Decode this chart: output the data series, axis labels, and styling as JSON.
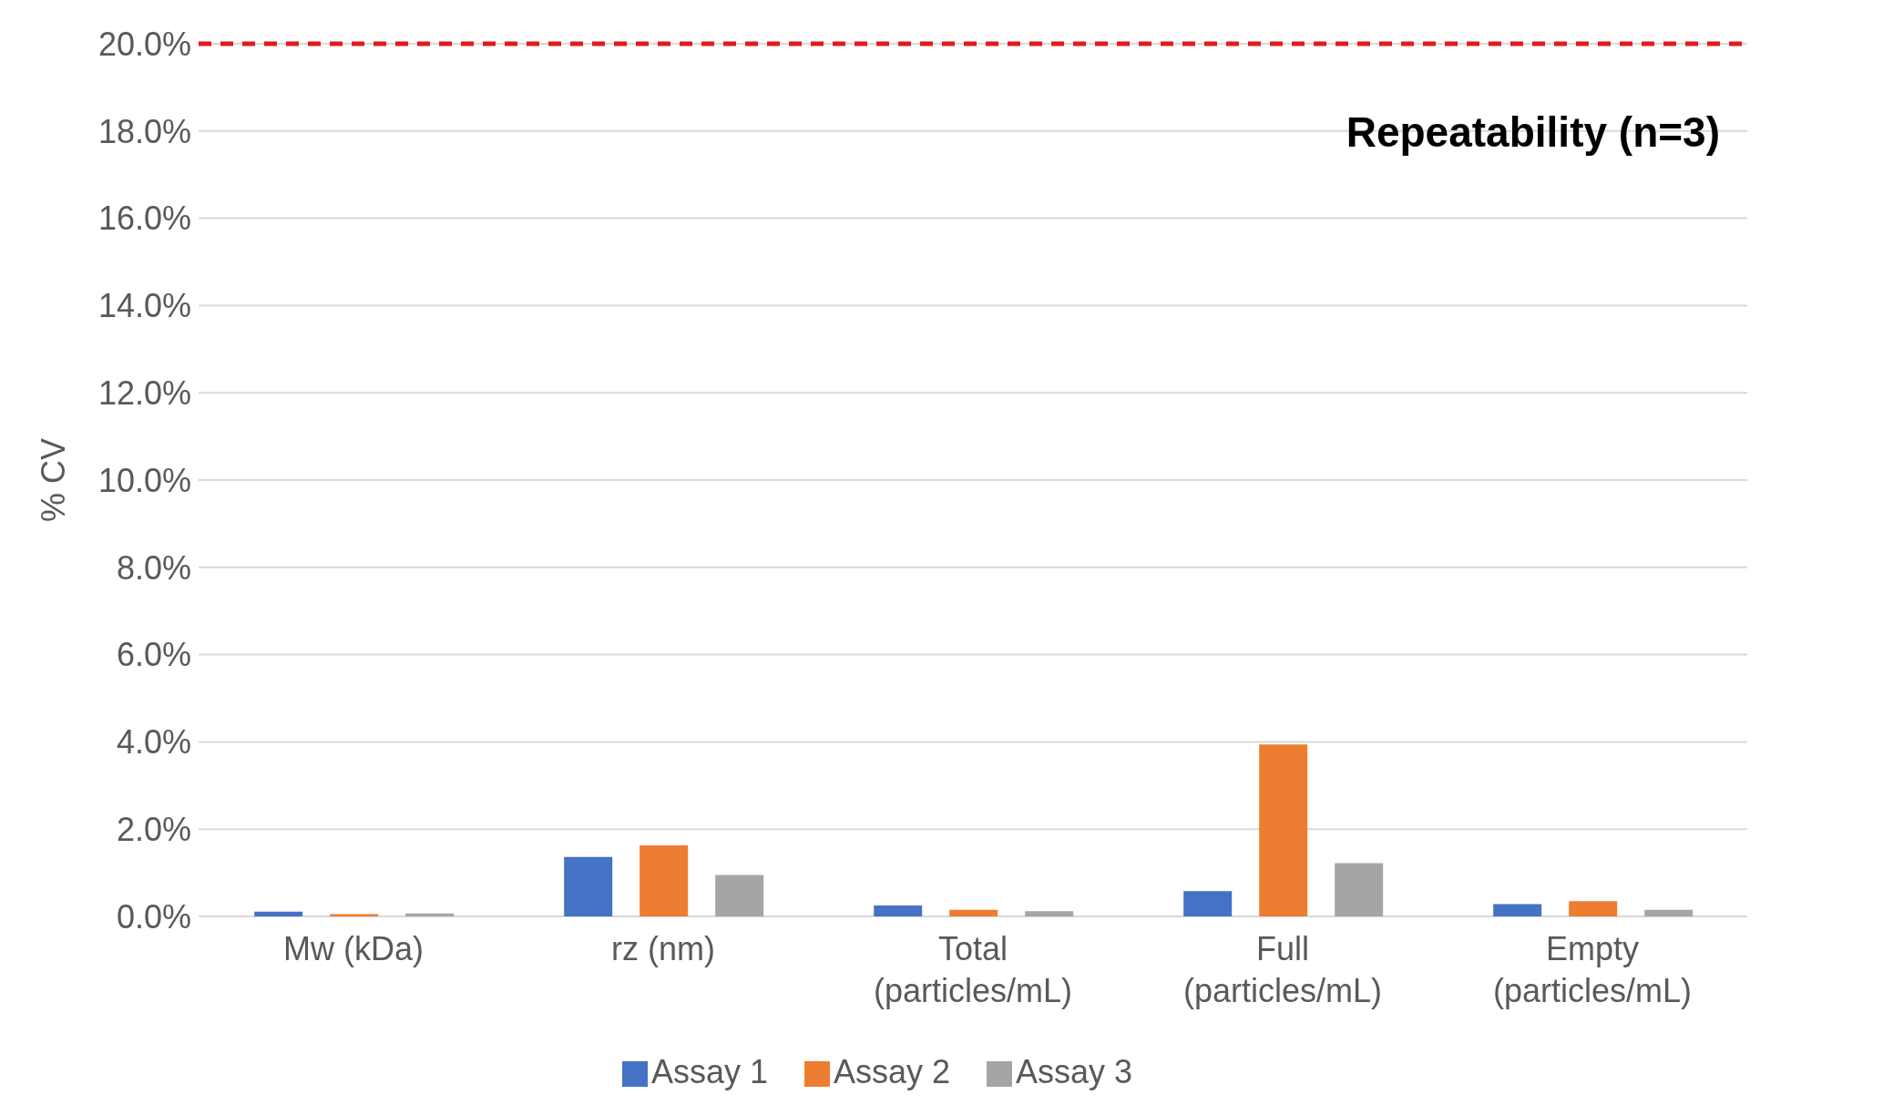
{
  "chart_data": {
    "type": "bar",
    "ylabel": "% CV",
    "annotations": [
      "Repeatability (n=3)"
    ],
    "categories": [
      "Mw (kDa)",
      "rz (nm)",
      "Total\n(particles/mL)",
      "Full\n(particles/mL)",
      "Empty\n(particles/mL)"
    ],
    "series": [
      {
        "name": "Assay 1",
        "color": "#4472c4",
        "values": [
          0.11,
          1.36,
          0.25,
          0.58,
          0.28
        ]
      },
      {
        "name": "Assay 2",
        "color": "#ed7d31",
        "values": [
          0.05,
          1.63,
          0.15,
          3.94,
          0.35
        ]
      },
      {
        "name": "Assay 3",
        "color": "#a5a5a5",
        "values": [
          0.07,
          0.95,
          0.12,
          1.22,
          0.15
        ]
      }
    ],
    "ylim": [
      0,
      20
    ],
    "yticks": [
      {
        "value": 0,
        "label": "0.0%"
      },
      {
        "value": 2,
        "label": "2.0%"
      },
      {
        "value": 4,
        "label": "4.0%"
      },
      {
        "value": 6,
        "label": "6.0%"
      },
      {
        "value": 8,
        "label": "8.0%"
      },
      {
        "value": 10,
        "label": "10.0%"
      },
      {
        "value": 12,
        "label": "12.0%"
      },
      {
        "value": 14,
        "label": "14.0%"
      },
      {
        "value": 16,
        "label": "16.0%"
      },
      {
        "value": 18,
        "label": "18.0%"
      },
      {
        "value": 20,
        "label": "20.0%"
      }
    ],
    "ref_lines": [
      {
        "axis": "y",
        "value": 20,
        "color": "#e3191c",
        "line_style": "dashed"
      }
    ],
    "grid": "y",
    "legend": "bottom"
  }
}
